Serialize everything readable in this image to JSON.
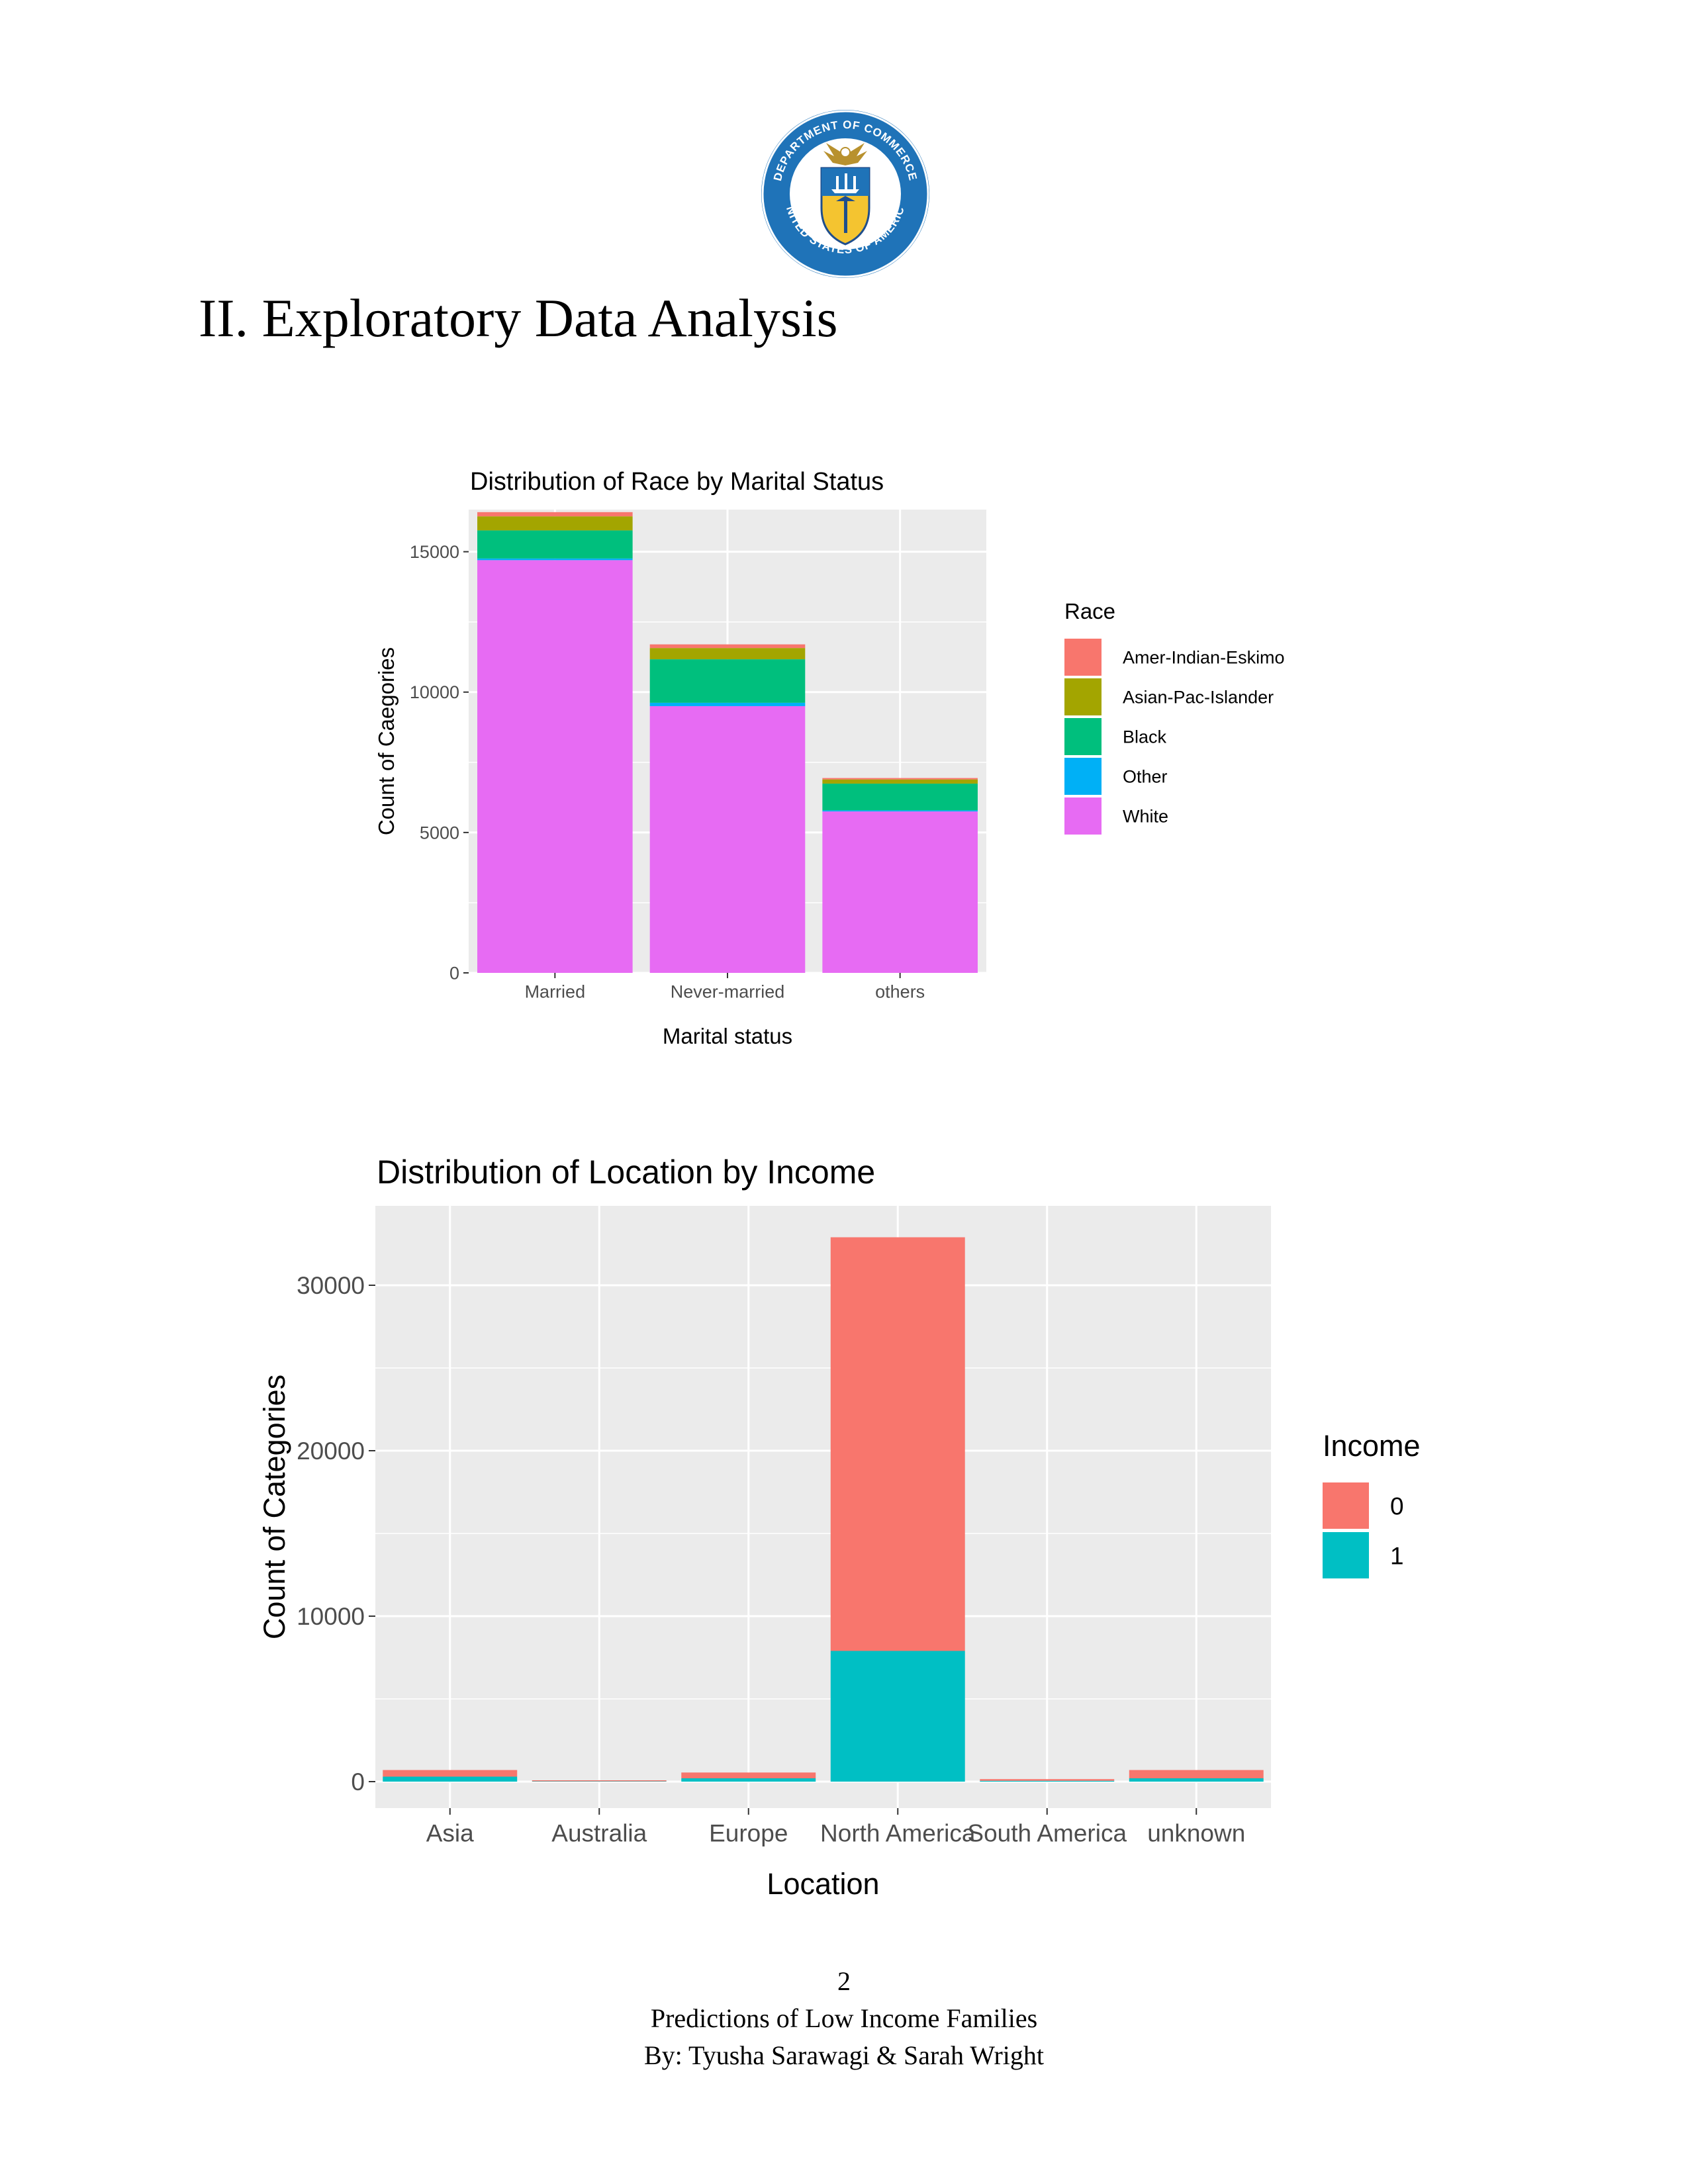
{
  "page": {
    "heading": "II. Exploratory Data Analysis",
    "seal_text_top": "DEPARTMENT OF COMMERCE",
    "seal_text_bottom": "UNITED STATES OF AMERICA",
    "footer": {
      "page_number": "2",
      "title": "Predictions of Low Income Families",
      "authors": "By: Tyusha Sarawagi & Sarah Wright"
    }
  },
  "chart_data": [
    {
      "type": "bar",
      "stacked": true,
      "title": "Distribution of Race by Marital Status",
      "xlabel": "Marital status",
      "ylabel": "Count of Caegories",
      "categories": [
        "Married",
        "Never-married",
        "others"
      ],
      "ylim": [
        0,
        16500
      ],
      "yticks": [
        0,
        5000,
        10000,
        15000
      ],
      "ytick_labels": [
        "0",
        "5000",
        "10000",
        "15000"
      ],
      "legend_title": "Race",
      "legend_position": "right",
      "grid": true,
      "series": [
        {
          "name": "White",
          "color": "#E76BF3",
          "values": [
            14700,
            9500,
            5750
          ]
        },
        {
          "name": "Other",
          "color": "#00B0F6",
          "values": [
            60,
            120,
            40
          ]
        },
        {
          "name": "Black",
          "color": "#00BF7D",
          "values": [
            1000,
            1550,
            950
          ]
        },
        {
          "name": "Asian-Pac-Islander",
          "color": "#A3A500",
          "values": [
            500,
            400,
            150
          ]
        },
        {
          "name": "Amer-Indian-Eskimo",
          "color": "#F8766D",
          "values": [
            150,
            130,
            50
          ]
        }
      ],
      "legend_order": [
        "Amer-Indian-Eskimo",
        "Asian-Pac-Islander",
        "Black",
        "Other",
        "White"
      ]
    },
    {
      "type": "bar",
      "stacked": true,
      "title": "Distribution of Location by Income",
      "xlabel": "Location",
      "ylabel": "Count of Categories",
      "categories": [
        "Asia",
        "Australia",
        "Europe",
        "North America",
        "South America",
        "unknown"
      ],
      "ylim": [
        -1600,
        34800
      ],
      "yticks": [
        0,
        10000,
        20000,
        30000
      ],
      "ytick_labels": [
        "0",
        "10000",
        "20000",
        "30000"
      ],
      "legend_title": "Income",
      "legend_position": "right",
      "grid": true,
      "series": [
        {
          "name": "1",
          "color": "#00BFC4",
          "values": [
            300,
            20,
            200,
            7900,
            50,
            200
          ]
        },
        {
          "name": "0",
          "color": "#F8766D",
          "values": [
            400,
            60,
            350,
            25000,
            100,
            500
          ]
        }
      ],
      "legend_order": [
        "0",
        "1"
      ]
    }
  ]
}
